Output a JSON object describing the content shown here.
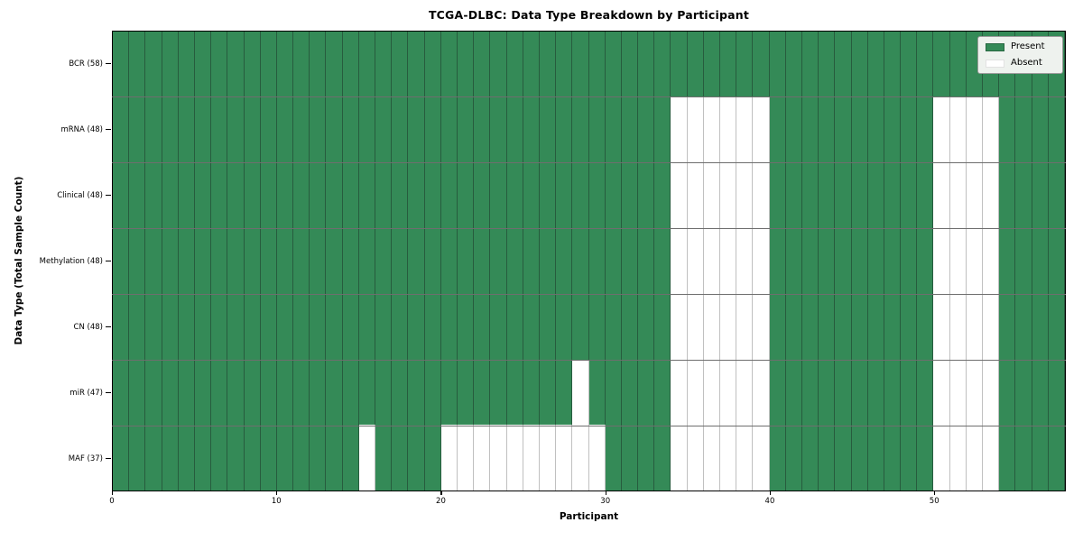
{
  "title": "TCGA-DLBC: Data Type Breakdown by Participant",
  "xlabel": "Participant",
  "ylabel": "Data Type (Total Sample Count)",
  "legend": {
    "present_label": "Present",
    "absent_label": "Absent"
  },
  "colors": {
    "present": "#348a57",
    "absent": "#ffffff",
    "grid_on_present": "#275c3e",
    "grid_on_absent": "#c0c0c0",
    "row_separator": "#6e6e6e",
    "axis": "#000000",
    "legend_bg": "#eef2ee"
  },
  "chart_data": {
    "type": "heatmap",
    "title": "TCGA-DLBC: Data Type Breakdown by Participant",
    "xlabel": "Participant",
    "ylabel": "Data Type (Total Sample Count)",
    "n_participants": 58,
    "xlim": [
      0,
      58
    ],
    "x_ticks": [
      0,
      10,
      20,
      30,
      40,
      50
    ],
    "grid": "cell-outlines",
    "legend_entries": [
      "Present",
      "Absent"
    ],
    "legend_position": "upper-right",
    "value_encoding": {
      "present": 1,
      "absent": 0
    },
    "rows": [
      {
        "label": "BCR (58)",
        "name": "BCR",
        "total_samples": 58,
        "absent_participants": []
      },
      {
        "label": "mRNA (48)",
        "name": "mRNA",
        "total_samples": 48,
        "absent_participants": [
          34,
          35,
          36,
          37,
          38,
          39,
          50,
          51,
          52,
          53
        ]
      },
      {
        "label": "Clinical (48)",
        "name": "Clinical",
        "total_samples": 48,
        "absent_participants": [
          34,
          35,
          36,
          37,
          38,
          39,
          50,
          51,
          52,
          53
        ]
      },
      {
        "label": "Methylation (48)",
        "name": "Methylation",
        "total_samples": 48,
        "absent_participants": [
          34,
          35,
          36,
          37,
          38,
          39,
          50,
          51,
          52,
          53
        ]
      },
      {
        "label": "CN (48)",
        "name": "CN",
        "total_samples": 48,
        "absent_participants": [
          34,
          35,
          36,
          37,
          38,
          39,
          50,
          51,
          52,
          53
        ]
      },
      {
        "label": "miR (47)",
        "name": "miR",
        "total_samples": 47,
        "absent_participants": [
          28,
          34,
          35,
          36,
          37,
          38,
          39,
          50,
          51,
          52,
          53
        ]
      },
      {
        "label": "MAF (37)",
        "name": "MAF",
        "total_samples": 37,
        "absent_participants": [
          15,
          20,
          21,
          22,
          23,
          24,
          25,
          26,
          27,
          28,
          29,
          34,
          35,
          36,
          37,
          38,
          39,
          50,
          51,
          52,
          53
        ]
      }
    ]
  }
}
